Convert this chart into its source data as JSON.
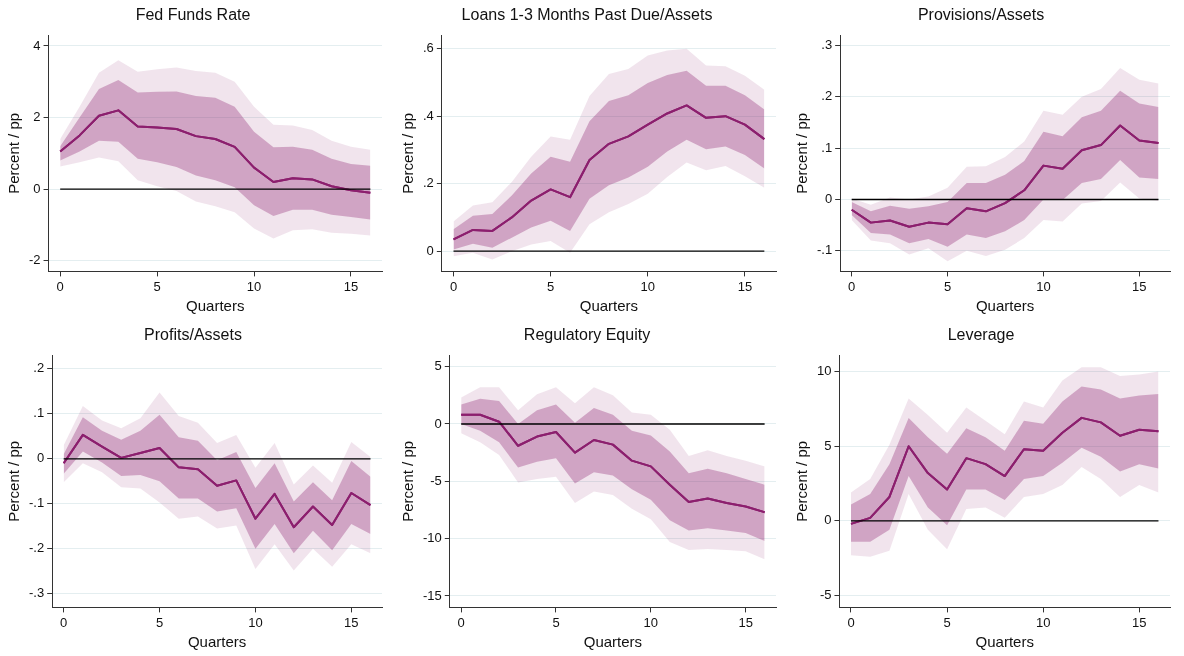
{
  "chart_data": [
    {
      "type": "line",
      "title": "Fed Funds Rate",
      "xlabel": "Quarters",
      "ylabel": "Percent / pp",
      "x": [
        0,
        1,
        2,
        3,
        4,
        5,
        6,
        7,
        8,
        9,
        10,
        11,
        12,
        13,
        14,
        15,
        16
      ],
      "xlim": [
        -0.6,
        16.6
      ],
      "xticks": [
        0,
        5,
        10,
        15
      ],
      "ylim": [
        -2.3,
        4.3
      ],
      "yticks": [
        -2,
        0,
        2,
        4
      ],
      "grid": "y",
      "legend": false,
      "marker": "none",
      "line_style": "solid",
      "ref_lines": [
        {
          "axis": "y",
          "value": 0,
          "color": "#000000"
        }
      ],
      "series": [
        {
          "color": "#8c1f6e",
          "values": [
            1.05,
            1.5,
            2.05,
            2.2,
            1.75,
            1.72,
            1.68,
            1.48,
            1.4,
            1.18,
            0.6,
            0.2,
            0.3,
            0.27,
            0.08,
            -0.03,
            -0.1
          ],
          "lower": [
            0.8,
            1.05,
            1.35,
            1.32,
            0.85,
            0.75,
            0.62,
            0.38,
            0.25,
            0.05,
            -0.45,
            -0.75,
            -0.58,
            -0.58,
            -0.72,
            -0.78,
            -0.85
          ],
          "upper": [
            1.2,
            2.0,
            2.8,
            3.05,
            2.7,
            2.72,
            2.73,
            2.6,
            2.55,
            2.3,
            1.6,
            1.17,
            1.18,
            1.1,
            0.85,
            0.7,
            0.65
          ]
        },
        {
          "color": "#8c1f6e",
          "values": [
            1.05,
            1.5,
            2.05,
            2.2,
            1.75,
            1.72,
            1.68,
            1.48,
            1.4,
            1.18,
            0.6,
            0.2,
            0.3,
            0.27,
            0.08,
            -0.03,
            -0.1
          ],
          "lower": [
            0.63,
            0.75,
            0.88,
            0.78,
            0.25,
            0.08,
            -0.05,
            -0.35,
            -0.48,
            -0.65,
            -1.1,
            -1.38,
            -1.15,
            -1.12,
            -1.22,
            -1.25,
            -1.3
          ],
          "upper": [
            1.4,
            2.3,
            3.25,
            3.6,
            3.28,
            3.35,
            3.4,
            3.3,
            3.25,
            3.0,
            2.3,
            1.8,
            1.78,
            1.65,
            1.35,
            1.18,
            1.1
          ]
        }
      ]
    },
    {
      "type": "line",
      "title": "Loans 1-3 Months Past Due/Assets",
      "xlabel": "Quarters",
      "ylabel": "Percent / pp",
      "x": [
        0,
        1,
        2,
        3,
        4,
        5,
        6,
        7,
        8,
        9,
        10,
        11,
        12,
        13,
        14,
        15,
        16
      ],
      "xlim": [
        -0.6,
        16.6
      ],
      "xticks": [
        0,
        5,
        10,
        15
      ],
      "ylim": [
        -0.06,
        0.64
      ],
      "yticks": [
        {
          "value": 0,
          "label": "0"
        },
        {
          "value": 0.2,
          "label": ".2"
        },
        {
          "value": 0.4,
          "label": ".4"
        },
        {
          "value": 0.6,
          "label": ".6"
        }
      ],
      "grid": "y",
      "legend": false,
      "marker": "none",
      "line_style": "solid",
      "ref_lines": [
        {
          "axis": "y",
          "value": 0,
          "color": "#000000"
        }
      ],
      "series": [
        {
          "color": "#8c1f6e",
          "values": [
            0.035,
            0.063,
            0.06,
            0.1,
            0.15,
            0.183,
            0.16,
            0.27,
            0.318,
            0.34,
            0.375,
            0.408,
            0.432,
            0.395,
            0.4,
            0.375,
            0.332
          ],
          "lower": [
            0.005,
            0.022,
            0.01,
            0.04,
            0.07,
            0.09,
            0.06,
            0.155,
            0.195,
            0.218,
            0.25,
            0.295,
            0.33,
            0.302,
            0.31,
            0.285,
            0.245
          ],
          "upper": [
            0.065,
            0.105,
            0.11,
            0.165,
            0.23,
            0.28,
            0.265,
            0.385,
            0.445,
            0.462,
            0.498,
            0.522,
            0.535,
            0.49,
            0.49,
            0.462,
            0.42
          ]
        },
        {
          "color": "#8c1f6e",
          "values": [
            0.035,
            0.063,
            0.06,
            0.1,
            0.15,
            0.183,
            0.16,
            0.27,
            0.318,
            0.34,
            0.375,
            0.408,
            0.432,
            0.395,
            0.4,
            0.375,
            0.332
          ],
          "lower": [
            -0.015,
            -0.005,
            -0.025,
            0,
            0.02,
            0.03,
            -0.005,
            0.08,
            0.115,
            0.14,
            0.17,
            0.22,
            0.263,
            0.24,
            0.252,
            0.222,
            0.188
          ],
          "upper": [
            0.088,
            0.135,
            0.145,
            0.205,
            0.28,
            0.34,
            0.33,
            0.46,
            0.525,
            0.54,
            0.58,
            0.595,
            0.6,
            0.55,
            0.548,
            0.52,
            0.478
          ]
        }
      ]
    },
    {
      "type": "line",
      "title": "Provisions/Assets",
      "xlabel": "Quarters",
      "ylabel": "Percent / pp",
      "x": [
        0,
        1,
        2,
        3,
        4,
        5,
        6,
        7,
        8,
        9,
        10,
        11,
        12,
        13,
        14,
        15,
        16
      ],
      "xlim": [
        -0.6,
        16.6
      ],
      "xticks": [
        0,
        5,
        10,
        15
      ],
      "ylim": [
        -0.14,
        0.32
      ],
      "yticks": [
        {
          "value": -0.1,
          "label": "-.1"
        },
        {
          "value": 0,
          "label": "0"
        },
        {
          "value": 0.1,
          "label": ".1"
        },
        {
          "value": 0.2,
          "label": ".2"
        },
        {
          "value": 0.3,
          "label": ".3"
        }
      ],
      "grid": "y",
      "legend": false,
      "marker": "none",
      "line_style": "solid",
      "ref_lines": [
        {
          "axis": "y",
          "value": 0,
          "color": "#000000"
        }
      ],
      "series": [
        {
          "color": "#8c1f6e",
          "values": [
            -0.02,
            -0.045,
            -0.041,
            -0.053,
            -0.045,
            -0.048,
            -0.017,
            -0.023,
            -0.007,
            0.018,
            0.066,
            0.06,
            0.096,
            0.106,
            0.144,
            0.115,
            0.11
          ],
          "lower": [
            -0.03,
            -0.065,
            -0.068,
            -0.085,
            -0.077,
            -0.092,
            -0.068,
            -0.075,
            -0.062,
            -0.04,
            0,
            -0.001,
            0.032,
            0.04,
            0.077,
            0.043,
            0.04
          ],
          "upper": [
            -0.005,
            -0.023,
            -0.012,
            -0.018,
            -0.013,
            -0.005,
            0.032,
            0.032,
            0.048,
            0.075,
            0.132,
            0.123,
            0.16,
            0.173,
            0.212,
            0.187,
            0.18
          ]
        },
        {
          "color": "#8c1f6e",
          "values": [
            -0.02,
            -0.045,
            -0.041,
            -0.053,
            -0.045,
            -0.048,
            -0.017,
            -0.023,
            -0.007,
            0.018,
            0.066,
            0.06,
            0.096,
            0.106,
            0.144,
            0.115,
            0.11
          ],
          "lower": [
            -0.04,
            -0.08,
            -0.085,
            -0.107,
            -0.095,
            -0.12,
            -0.1,
            -0.11,
            -0.098,
            -0.075,
            -0.04,
            -0.043,
            -0.008,
            -0.003,
            0.033,
            0.002,
            -0.003
          ],
          "upper": [
            0.002,
            -0.01,
            0.004,
            0,
            0.006,
            0.023,
            0.064,
            0.065,
            0.083,
            0.113,
            0.173,
            0.165,
            0.2,
            0.215,
            0.256,
            0.233,
            0.226
          ]
        }
      ]
    },
    {
      "type": "line",
      "title": "Profits/Assets",
      "xlabel": "Quarters",
      "ylabel": "Percent / pp",
      "x": [
        0,
        1,
        2,
        3,
        4,
        5,
        6,
        7,
        8,
        9,
        10,
        11,
        12,
        13,
        14,
        15,
        16
      ],
      "xlim": [
        -0.6,
        16.6
      ],
      "xticks": [
        0,
        5,
        10,
        15
      ],
      "ylim": [
        -0.33,
        0.23
      ],
      "yticks": [
        {
          "value": -0.3,
          "label": "-.3"
        },
        {
          "value": -0.2,
          "label": "-.2"
        },
        {
          "value": -0.1,
          "label": "-.1"
        },
        {
          "value": 0,
          "label": "0"
        },
        {
          "value": 0.1,
          "label": ".1"
        },
        {
          "value": 0.2,
          "label": ".2"
        }
      ],
      "grid": "y",
      "legend": false,
      "marker": "none",
      "line_style": "solid",
      "ref_lines": [
        {
          "axis": "y",
          "value": 0,
          "color": "#000000"
        }
      ],
      "series": [
        {
          "color": "#8c1f6e",
          "values": [
            -0.01,
            0.053,
            0.027,
            0.002,
            0.013,
            0.024,
            -0.019,
            -0.023,
            -0.06,
            -0.048,
            -0.133,
            -0.078,
            -0.152,
            -0.106,
            -0.147,
            -0.076,
            -0.103
          ],
          "lower": [
            -0.033,
            0.016,
            -0.008,
            -0.038,
            -0.036,
            -0.05,
            -0.088,
            -0.088,
            -0.117,
            -0.11,
            -0.2,
            -0.145,
            -0.21,
            -0.16,
            -0.203,
            -0.145,
            -0.167
          ],
          "upper": [
            0.01,
            0.092,
            0.062,
            0.042,
            0.062,
            0.098,
            0.048,
            0.04,
            -0.003,
            0.015,
            -0.065,
            -0.01,
            -0.095,
            -0.052,
            -0.092,
            -0.005,
            -0.04
          ]
        },
        {
          "color": "#8c1f6e",
          "values": [
            -0.01,
            0.053,
            0.027,
            0.002,
            0.013,
            0.024,
            -0.019,
            -0.023,
            -0.06,
            -0.048,
            -0.133,
            -0.078,
            -0.152,
            -0.106,
            -0.147,
            -0.076,
            -0.103
          ],
          "lower": [
            -0.052,
            -0.01,
            -0.03,
            -0.063,
            -0.066,
            -0.097,
            -0.133,
            -0.128,
            -0.155,
            -0.148,
            -0.245,
            -0.19,
            -0.248,
            -0.2,
            -0.24,
            -0.19,
            -0.21
          ],
          "upper": [
            0.03,
            0.117,
            0.085,
            0.068,
            0.09,
            0.147,
            0.095,
            0.08,
            0.035,
            0.053,
            -0.02,
            0.035,
            -0.057,
            -0.015,
            -0.053,
            0.037,
            0.004
          ]
        }
      ]
    },
    {
      "type": "line",
      "title": "Regulatory Equity",
      "xlabel": "Quarters",
      "ylabel": "Percent / pp",
      "x": [
        0,
        1,
        2,
        3,
        4,
        5,
        6,
        7,
        8,
        9,
        10,
        11,
        12,
        13,
        14,
        15,
        16
      ],
      "xlim": [
        -0.6,
        16.6
      ],
      "xticks": [
        0,
        5,
        10,
        15
      ],
      "ylim": [
        -16,
        6
      ],
      "yticks": [
        -15,
        -10,
        -5,
        0,
        5
      ],
      "grid": "y",
      "legend": false,
      "marker": "none",
      "line_style": "solid",
      "ref_lines": [
        {
          "axis": "y",
          "value": 0,
          "color": "#000000"
        }
      ],
      "series": [
        {
          "color": "#8c1f6e",
          "values": [
            0.8,
            0.8,
            0.2,
            -1.9,
            -1.1,
            -0.7,
            -2.5,
            -1.4,
            -1.8,
            -3.2,
            -3.7,
            -5.3,
            -6.8,
            -6.5,
            -6.9,
            -7.2,
            -7.7
          ],
          "lower": [
            0,
            -0.6,
            -1.6,
            -3.8,
            -3.3,
            -3.0,
            -5.2,
            -4.2,
            -4.5,
            -5.7,
            -6.6,
            -8.4,
            -9.3,
            -9.1,
            -9.3,
            -9.5,
            -10.2
          ],
          "upper": [
            1.7,
            2.2,
            2.0,
            0.0,
            1.2,
            1.7,
            0.1,
            1.4,
            0.8,
            -0.6,
            -1.0,
            -2.4,
            -4.3,
            -3.9,
            -4.3,
            -4.8,
            -5.3
          ]
        },
        {
          "color": "#8c1f6e",
          "values": [
            0.8,
            0.8,
            0.2,
            -1.9,
            -1.1,
            -0.7,
            -2.5,
            -1.4,
            -1.8,
            -3.2,
            -3.7,
            -5.3,
            -6.8,
            -6.5,
            -6.9,
            -7.2,
            -7.7
          ],
          "lower": [
            -0.8,
            -1.6,
            -2.7,
            -5.1,
            -4.8,
            -4.6,
            -6.9,
            -5.9,
            -6.2,
            -7.4,
            -8.3,
            -10.3,
            -11.0,
            -10.9,
            -11.0,
            -11.1,
            -11.8
          ],
          "upper": [
            2.3,
            3.2,
            3.2,
            1.2,
            2.6,
            3.2,
            1.8,
            3.2,
            2.5,
            1.0,
            0.8,
            -0.5,
            -2.8,
            -2.3,
            -2.8,
            -3.2,
            -3.7
          ]
        }
      ]
    },
    {
      "type": "line",
      "title": "Leverage",
      "xlabel": "Quarters",
      "ylabel": "Percent / pp",
      "x": [
        0,
        1,
        2,
        3,
        4,
        5,
        6,
        7,
        8,
        9,
        10,
        11,
        12,
        13,
        14,
        15,
        16
      ],
      "xlim": [
        -0.6,
        16.6
      ],
      "xticks": [
        0,
        5,
        10,
        15
      ],
      "ylim": [
        -5.8,
        11.1
      ],
      "yticks": [
        -5,
        0,
        5,
        10
      ],
      "grid": "y",
      "legend": false,
      "marker": "none",
      "line_style": "solid",
      "ref_lines": [
        {
          "axis": "y",
          "value": 0,
          "color": "#000000"
        }
      ],
      "series": [
        {
          "color": "#8c1f6e",
          "values": [
            -0.2,
            0.2,
            1.6,
            5.0,
            3.2,
            2.1,
            4.2,
            3.8,
            3.0,
            4.8,
            4.7,
            5.9,
            6.9,
            6.6,
            5.7,
            6.1,
            6.0
          ],
          "lower": [
            -1.4,
            -1.4,
            -0.6,
            3.0,
            0.9,
            -0.3,
            2.1,
            2.1,
            1.4,
            2.8,
            3.0,
            3.9,
            4.9,
            4.3,
            3.3,
            3.8,
            3.5
          ],
          "upper": [
            1.1,
            1.8,
            3.8,
            6.9,
            5.6,
            4.5,
            6.2,
            5.6,
            4.7,
            6.7,
            6.5,
            8.0,
            9.0,
            8.8,
            8.2,
            8.4,
            8.5
          ]
        },
        {
          "color": "#8c1f6e",
          "values": [
            -0.2,
            0.2,
            1.6,
            5.0,
            3.2,
            2.1,
            4.2,
            3.8,
            3.0,
            4.8,
            4.7,
            5.9,
            6.9,
            6.6,
            5.7,
            6.1,
            6.0
          ],
          "lower": [
            -2.3,
            -2.4,
            -2.0,
            1.8,
            -0.6,
            -1.9,
            0.8,
            0.9,
            0.2,
            1.6,
            1.8,
            2.4,
            3.6,
            2.8,
            1.6,
            2.4,
            1.9
          ],
          "upper": [
            1.9,
            2.8,
            5.1,
            8.2,
            7.1,
            5.9,
            7.6,
            6.7,
            5.8,
            8.0,
            7.6,
            9.4,
            10.3,
            10.3,
            9.7,
            9.8,
            10.0
          ]
        }
      ]
    }
  ]
}
